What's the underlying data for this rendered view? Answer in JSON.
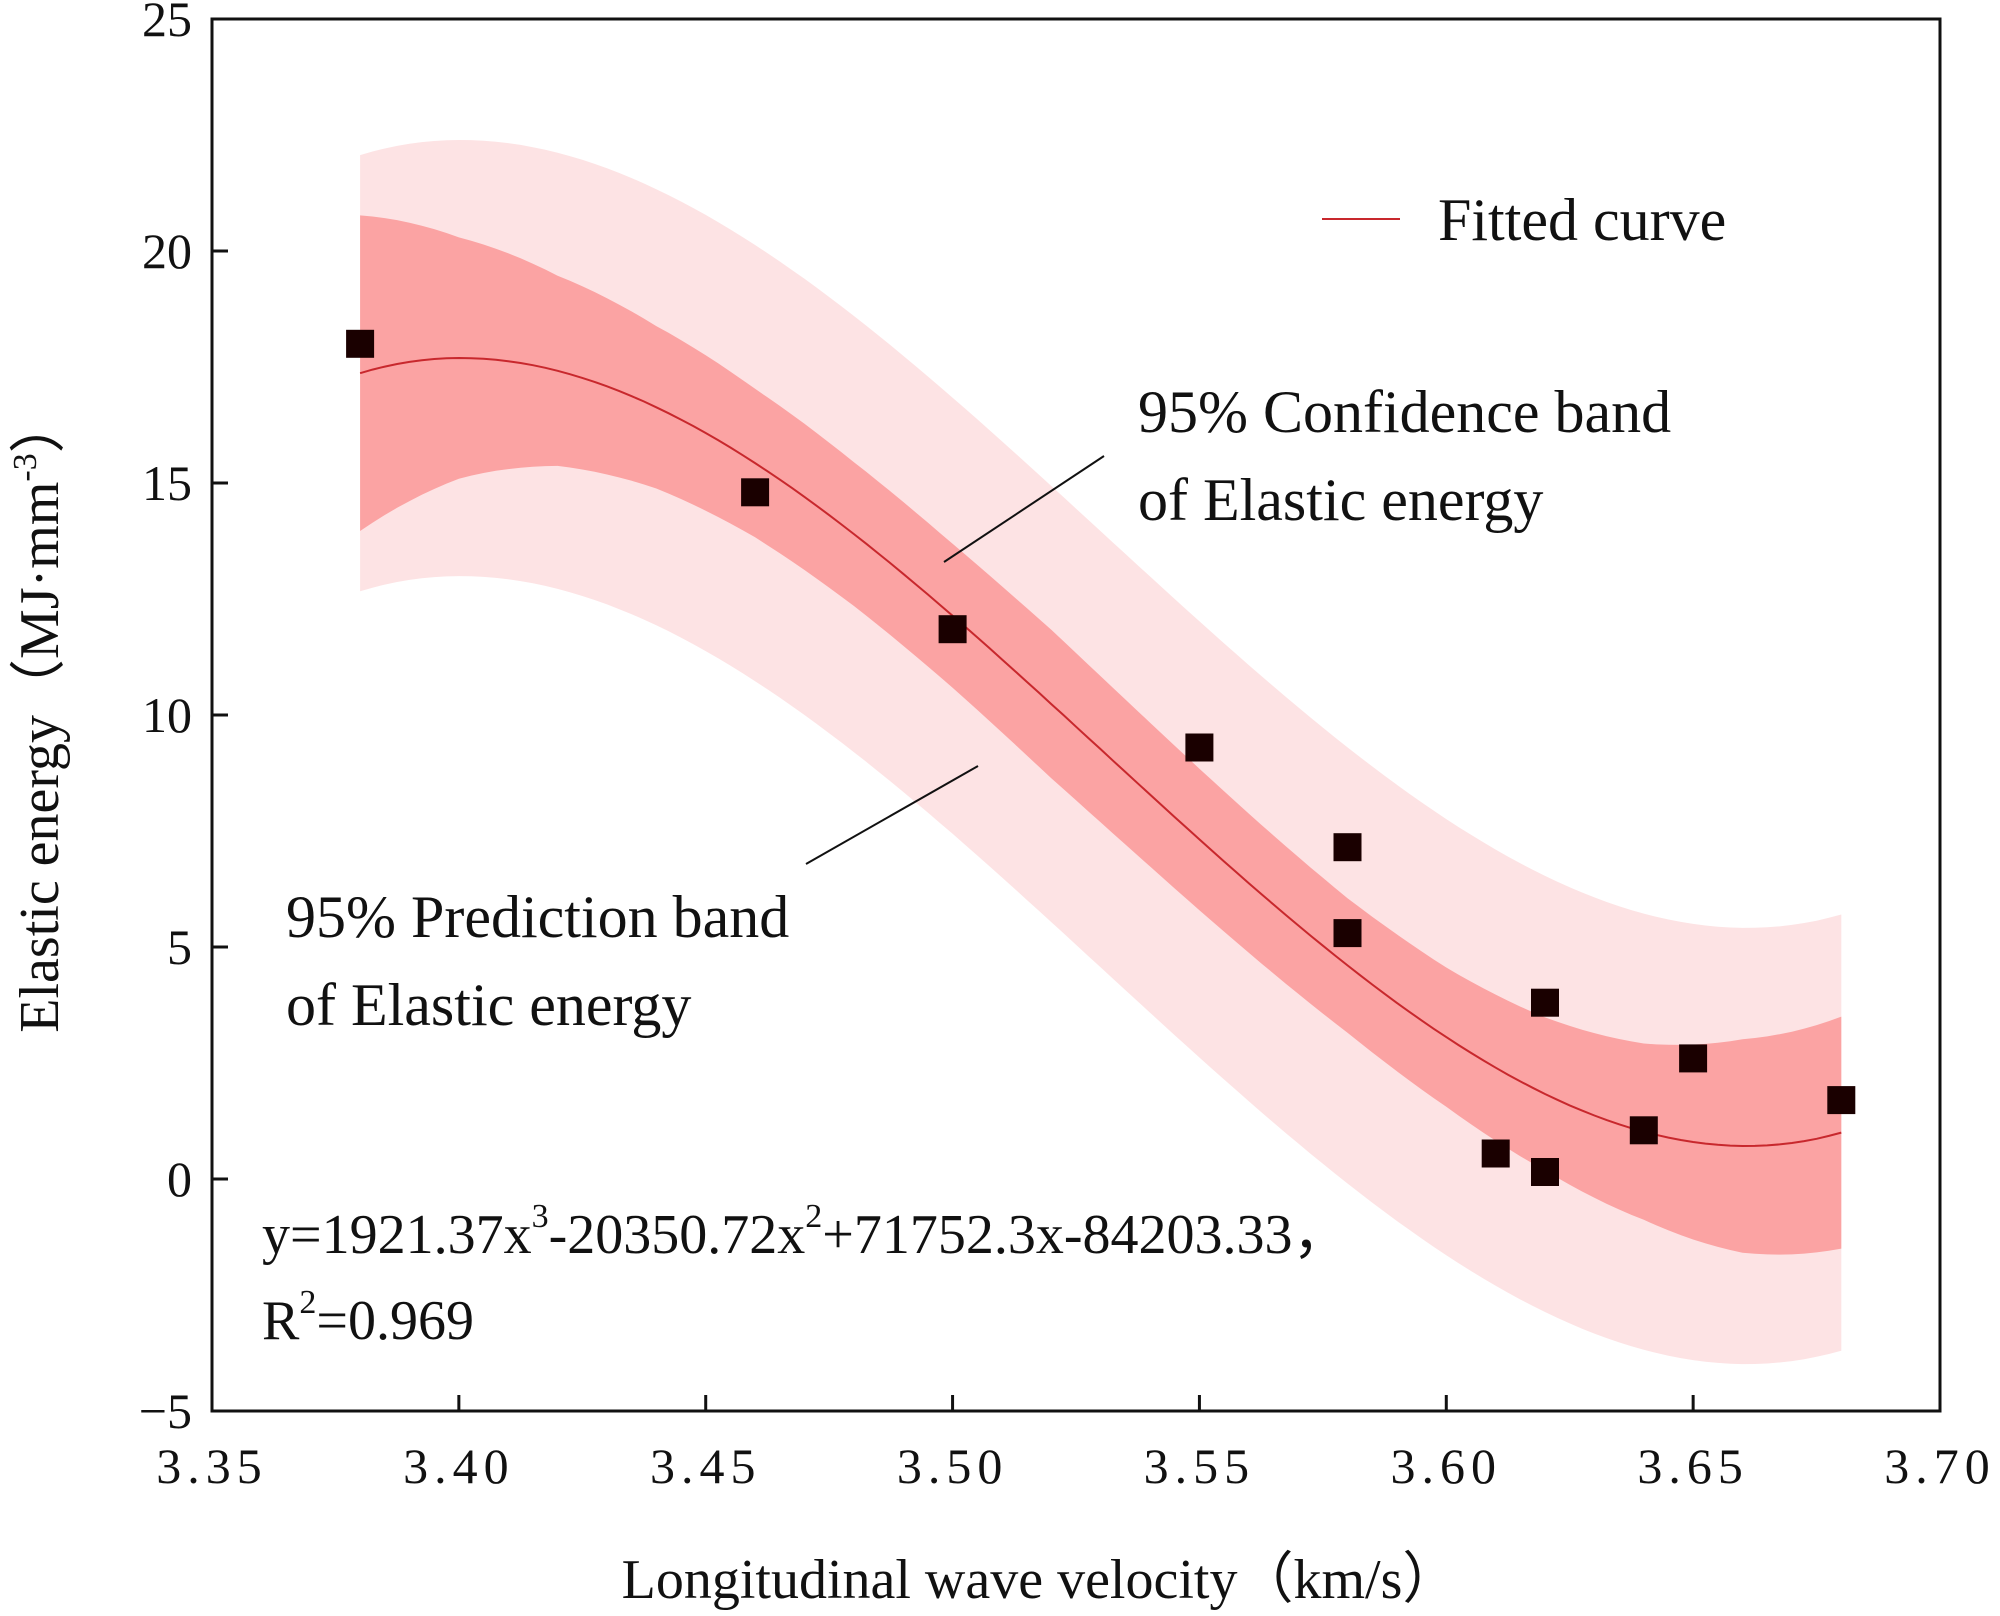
{
  "chart_data": {
    "type": "scatter",
    "title": "",
    "xlabel": "Longitudinal wave velocity（km/s）",
    "ylabel": "Elastic energy（MJ·mm",
    "ylabel_sup": "-3",
    "ylabel_close": "）",
    "xlim": [
      3.35,
      3.7
    ],
    "ylim": [
      -5,
      25
    ],
    "x_ticks": [
      3.35,
      3.4,
      3.45,
      3.5,
      3.55,
      3.6,
      3.65,
      3.7
    ],
    "x_tick_labels": [
      "3.35",
      "3.40",
      "3.45",
      "3.50",
      "3.55",
      "3.60",
      "3.65",
      "3.70"
    ],
    "y_ticks": [
      -5,
      0,
      5,
      10,
      15,
      20,
      25
    ],
    "y_tick_labels": [
      "−5",
      "0",
      "5",
      "10",
      "15",
      "20",
      "25"
    ],
    "points": [
      {
        "x": 3.38,
        "y": 18.0
      },
      {
        "x": 3.46,
        "y": 14.8
      },
      {
        "x": 3.5,
        "y": 11.85
      },
      {
        "x": 3.55,
        "y": 9.3
      },
      {
        "x": 3.58,
        "y": 7.15
      },
      {
        "x": 3.58,
        "y": 5.3
      },
      {
        "x": 3.61,
        "y": 0.55
      },
      {
        "x": 3.62,
        "y": 3.8
      },
      {
        "x": 3.62,
        "y": 0.15
      },
      {
        "x": 3.64,
        "y": 1.05
      },
      {
        "x": 3.65,
        "y": 2.6
      },
      {
        "x": 3.68,
        "y": 1.7
      }
    ],
    "fit": {
      "coefficients": [
        1921.37,
        -20350.72,
        71752.3,
        -84203.33
      ],
      "range": [
        3.38,
        3.68
      ],
      "name": "Fitted curve",
      "color": "#c8282d"
    },
    "confidence_band": {
      "x": [
        3.38,
        3.4,
        3.42,
        3.44,
        3.46,
        3.48,
        3.5,
        3.52,
        3.54,
        3.56,
        3.58,
        3.6,
        3.62,
        3.64,
        3.66,
        3.68
      ],
      "half_width": [
        3.4,
        2.6,
        2.05,
        1.75,
        1.6,
        1.55,
        1.55,
        1.6,
        1.55,
        1.5,
        1.45,
        1.5,
        1.65,
        1.9,
        2.3,
        2.5
      ],
      "color": "#fba3a3"
    },
    "prediction_band": {
      "half_width": 4.7,
      "color": "#fde3e4"
    },
    "point_color": "#1a0000",
    "legend": [
      {
        "label": "Fitted curve",
        "color": "#c8282d"
      }
    ],
    "annotations": {
      "confidence": [
        "95% Confidence band",
        "of Elastic energy"
      ],
      "prediction": [
        "95% Prediction band",
        "of Elastic energy"
      ],
      "equation": {
        "y_prefix": "y=1921.37x",
        "sup1": "3",
        "part2": "-20350.72x",
        "sup2": "2",
        "part3": "+71752.3x-84203.33",
        "comma": "，",
        "r_prefix": "R",
        "r_sup": "2",
        "r_value": "=0.969"
      }
    }
  }
}
